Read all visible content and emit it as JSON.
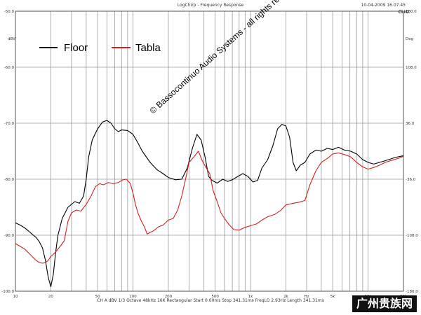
{
  "header": {
    "title": "LogChirp - Frequency Response",
    "datetime": "10-04-2009 16.07.45",
    "brand": "CLIO"
  },
  "axis": {
    "left_unit": "dBV",
    "right_unit": "Deg",
    "y_left_ticks": [
      "-50.0",
      "-60.0",
      "-70.0",
      "-80.0",
      "-90.0",
      "-100.0"
    ],
    "y_right_ticks": [
      "180.0",
      "108.0",
      "36.0",
      "-36.0",
      "-108.0",
      "-180.0"
    ],
    "x_ticks": [
      {
        "f": 10,
        "label": "10"
      },
      {
        "f": 20,
        "label": "20"
      },
      {
        "f": 50,
        "label": "50"
      },
      {
        "f": 100,
        "label": "100"
      },
      {
        "f": 200,
        "label": "200"
      },
      {
        "f": 500,
        "label": "500"
      },
      {
        "f": 1000,
        "label": "1k"
      },
      {
        "f": 2000,
        "label": "2k"
      },
      {
        "f": 3000,
        "label": "Hz"
      },
      {
        "f": 5000,
        "label": "5k"
      },
      {
        "f": 10000,
        "label": "10k"
      },
      {
        "f": 20000,
        "label": "20k"
      }
    ]
  },
  "legend": {
    "floor_label": "Floor",
    "tabla_label": "Tabla"
  },
  "copyright": "© Bassocontinuo Audio Systems - all rights reserved",
  "footer": "CH A   dBV   1/3 Octave   48kHz   16K   Rectangular   Start 0.00ms   Stop 341.31ms   FreqLO 2.93Hz   Length 341.31ms",
  "watermark": "广州贵族网",
  "colors": {
    "floor": "#000000",
    "tabla": "#d62020",
    "grid": "#9a9a9a"
  },
  "chart_data": {
    "type": "line",
    "title": "LogChirp - Frequency Response",
    "xscale": "log",
    "xlim": [
      10,
      20000
    ],
    "ylim": [
      -100,
      -50
    ],
    "ylabel": "dBV",
    "ylabel_right": "Deg",
    "series": [
      {
        "name": "Floor",
        "points": [
          [
            10,
            -87.8
          ],
          [
            11,
            -88.2
          ],
          [
            12,
            -88.7
          ],
          [
            13,
            -89.3
          ],
          [
            14,
            -89.9
          ],
          [
            15,
            -90.4
          ],
          [
            16,
            -91.2
          ],
          [
            17,
            -92.3
          ],
          [
            18,
            -94.5
          ],
          [
            19,
            -97.5
          ],
          [
            20,
            -99.2
          ],
          [
            21,
            -97.0
          ],
          [
            22,
            -93.0
          ],
          [
            23,
            -90.0
          ],
          [
            25,
            -87.0
          ],
          [
            28,
            -85.0
          ],
          [
            32,
            -84.0
          ],
          [
            35,
            -84.3
          ],
          [
            38,
            -83.0
          ],
          [
            40,
            -80.0
          ],
          [
            42,
            -76.0
          ],
          [
            45,
            -73.0
          ],
          [
            50,
            -71.0
          ],
          [
            55,
            -69.8
          ],
          [
            60,
            -69.5
          ],
          [
            65,
            -70.0
          ],
          [
            70,
            -71.0
          ],
          [
            75,
            -71.5
          ],
          [
            80,
            -71.2
          ],
          [
            90,
            -71.3
          ],
          [
            100,
            -72.0
          ],
          [
            110,
            -73.5
          ],
          [
            120,
            -75.0
          ],
          [
            140,
            -77.0
          ],
          [
            160,
            -78.3
          ],
          [
            180,
            -79.0
          ],
          [
            200,
            -79.7
          ],
          [
            230,
            -80.1
          ],
          [
            260,
            -80.0
          ],
          [
            290,
            -78.0
          ],
          [
            320,
            -74.5
          ],
          [
            350,
            -72.0
          ],
          [
            380,
            -73.0
          ],
          [
            410,
            -76.0
          ],
          [
            440,
            -79.5
          ],
          [
            470,
            -80.2
          ],
          [
            520,
            -80.7
          ],
          [
            580,
            -80.0
          ],
          [
            640,
            -80.4
          ],
          [
            700,
            -80.1
          ],
          [
            780,
            -79.5
          ],
          [
            860,
            -79.0
          ],
          [
            950,
            -79.5
          ],
          [
            1050,
            -80.5
          ],
          [
            1150,
            -80.2
          ],
          [
            1250,
            -78.0
          ],
          [
            1400,
            -76.5
          ],
          [
            1550,
            -74.0
          ],
          [
            1700,
            -71.0
          ],
          [
            1850,
            -70.2
          ],
          [
            2000,
            -70.5
          ],
          [
            2150,
            -72.5
          ],
          [
            2300,
            -77.0
          ],
          [
            2450,
            -78.5
          ],
          [
            2650,
            -77.5
          ],
          [
            2900,
            -77.0
          ],
          [
            3200,
            -75.5
          ],
          [
            3600,
            -74.8
          ],
          [
            4000,
            -75.0
          ],
          [
            4500,
            -74.5
          ],
          [
            5000,
            -74.7
          ],
          [
            5600,
            -74.3
          ],
          [
            6300,
            -74.8
          ],
          [
            7100,
            -75.0
          ],
          [
            8000,
            -75.5
          ],
          [
            9000,
            -76.5
          ],
          [
            10000,
            -77.0
          ],
          [
            11200,
            -77.3
          ],
          [
            12500,
            -77.0
          ],
          [
            14000,
            -76.7
          ],
          [
            16000,
            -76.3
          ],
          [
            18000,
            -76.0
          ],
          [
            20000,
            -75.8
          ]
        ]
      },
      {
        "name": "Tabla",
        "points": [
          [
            10,
            -91.5
          ],
          [
            11,
            -92.0
          ],
          [
            12,
            -92.5
          ],
          [
            13,
            -93.2
          ],
          [
            14,
            -93.9
          ],
          [
            15,
            -94.5
          ],
          [
            16,
            -94.9
          ],
          [
            17,
            -95.0
          ],
          [
            18,
            -94.9
          ],
          [
            19,
            -94.5
          ],
          [
            20,
            -93.8
          ],
          [
            22,
            -93.0
          ],
          [
            24,
            -92.0
          ],
          [
            26,
            -91.0
          ],
          [
            28,
            -87.5
          ],
          [
            30,
            -86.0
          ],
          [
            33,
            -85.5
          ],
          [
            36,
            -85.7
          ],
          [
            40,
            -84.5
          ],
          [
            44,
            -83.0
          ],
          [
            48,
            -81.3
          ],
          [
            52,
            -80.8
          ],
          [
            56,
            -81.0
          ],
          [
            62,
            -80.6
          ],
          [
            68,
            -80.8
          ],
          [
            75,
            -80.6
          ],
          [
            82,
            -80.1
          ],
          [
            88,
            -80.0
          ],
          [
            95,
            -80.8
          ],
          [
            100,
            -82.5
          ],
          [
            105,
            -84.5
          ],
          [
            110,
            -86.0
          ],
          [
            118,
            -87.5
          ],
          [
            125,
            -88.5
          ],
          [
            132,
            -89.8
          ],
          [
            140,
            -89.5
          ],
          [
            150,
            -89.2
          ],
          [
            165,
            -88.5
          ],
          [
            180,
            -88.2
          ],
          [
            200,
            -87.3
          ],
          [
            220,
            -87.0
          ],
          [
            240,
            -85.5
          ],
          [
            260,
            -83.0
          ],
          [
            280,
            -80.0
          ],
          [
            300,
            -77.0
          ],
          [
            330,
            -76.0
          ],
          [
            360,
            -75.0
          ],
          [
            390,
            -76.8
          ],
          [
            420,
            -78.0
          ],
          [
            450,
            -79.0
          ],
          [
            480,
            -82.0
          ],
          [
            520,
            -84.0
          ],
          [
            560,
            -86.0
          ],
          [
            600,
            -87.0
          ],
          [
            650,
            -88.0
          ],
          [
            720,
            -89.0
          ],
          [
            800,
            -89.1
          ],
          [
            900,
            -88.6
          ],
          [
            1000,
            -88.3
          ],
          [
            1120,
            -88.0
          ],
          [
            1250,
            -87.3
          ],
          [
            1400,
            -86.7
          ],
          [
            1600,
            -86.3
          ],
          [
            1800,
            -85.6
          ],
          [
            2000,
            -84.6
          ],
          [
            2300,
            -84.3
          ],
          [
            2600,
            -84.1
          ],
          [
            2900,
            -83.8
          ],
          [
            3200,
            -81.0
          ],
          [
            3600,
            -78.5
          ],
          [
            4000,
            -77.0
          ],
          [
            4500,
            -76.3
          ],
          [
            5000,
            -75.5
          ],
          [
            5600,
            -75.3
          ],
          [
            6300,
            -75.6
          ],
          [
            7100,
            -76.0
          ],
          [
            8000,
            -77.0
          ],
          [
            9000,
            -77.8
          ],
          [
            10000,
            -78.2
          ],
          [
            11200,
            -77.9
          ],
          [
            12500,
            -77.5
          ],
          [
            14000,
            -77.0
          ],
          [
            16000,
            -76.6
          ],
          [
            18000,
            -76.3
          ],
          [
            20000,
            -75.9
          ]
        ]
      }
    ]
  }
}
